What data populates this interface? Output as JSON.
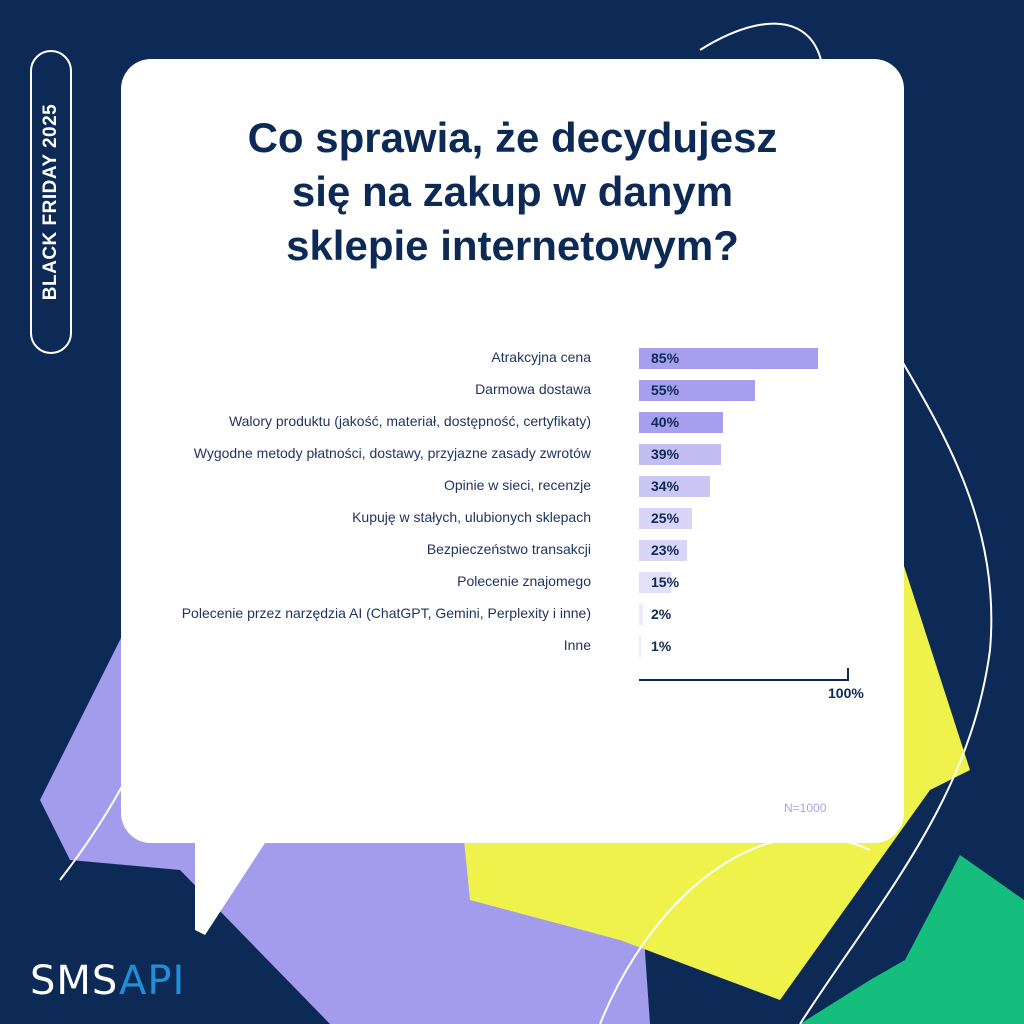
{
  "badge": "BLACK FRIDAY  2025",
  "logo": {
    "part1": "SMS",
    "part2": "API"
  },
  "colors": {
    "background": "#0c2a55",
    "purple": "#a39ced",
    "yellow": "#f0f24c",
    "green": "#16be7d"
  },
  "chart_data": {
    "type": "bar",
    "orientation": "horizontal",
    "title": "Co sprawia, że decydujesz się na zakup w danym sklepie internetowym?",
    "title_lines": [
      "Co sprawia, że decydujesz",
      "się na zakup w danym",
      "sklepie internetowym?"
    ],
    "categories": [
      "Atrakcyjna cena",
      "Darmowa dostawa",
      "Walory produktu (jakość, materiał, dostępność, certyfikaty)",
      "Wygodne metody płatności, dostawy, przyjazne zasady zwrotów",
      "Opinie w sieci, recenzje",
      "Kupuję w stałych, ulubionych sklepach",
      "Bezpieczeństwo transakcji",
      "Polecenie znajomego",
      "Polecenie przez narzędzia AI (ChatGPT, Gemini, Perplexity i inne)",
      "Inne"
    ],
    "values": [
      85,
      55,
      40,
      39,
      34,
      25,
      23,
      15,
      2,
      1
    ],
    "value_labels": [
      "85%",
      "55%",
      "40%",
      "39%",
      "34%",
      "25%",
      "23%",
      "15%",
      "2%",
      "1%"
    ],
    "bar_colors": [
      "#a59fed",
      "#a59fed",
      "#a59fed",
      "#c2bdf3",
      "#cbc7f5",
      "#d8d5f8",
      "#d8d5f8",
      "#e3e1fa",
      "#ecebfc",
      "#ecebfc"
    ],
    "xlim": [
      0,
      100
    ],
    "axis_label": "100%",
    "note": "N=1000"
  }
}
